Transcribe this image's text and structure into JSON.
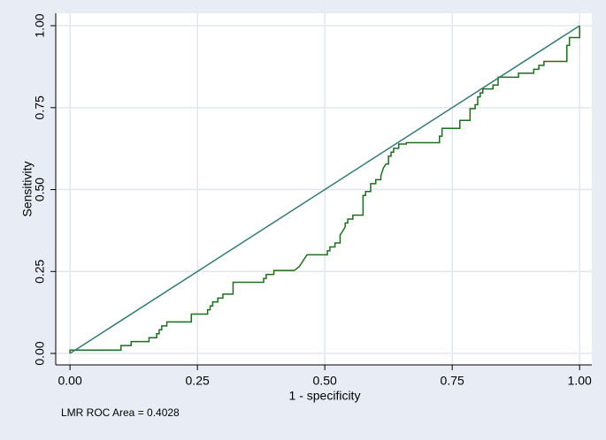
{
  "chart_data": {
    "type": "line",
    "x_label": "1 - specificity",
    "y_label": "Sensitivity",
    "note": "LMR ROC  Area = 0.4028",
    "xlim": [
      -0.028,
      1.024
    ],
    "ylim": [
      -0.035,
      1.038
    ],
    "xticks": [
      {
        "value": 0,
        "label": "0.00"
      },
      {
        "value": 0.25,
        "label": "0.25"
      },
      {
        "value": 0.5,
        "label": "0.50"
      },
      {
        "value": 0.75,
        "label": "0.75"
      },
      {
        "value": 1,
        "label": "1.00"
      }
    ],
    "yticks": [
      {
        "value": 0,
        "label": "0.00"
      },
      {
        "value": 0.25,
        "label": "0.25"
      },
      {
        "value": 0.5,
        "label": "0.50"
      },
      {
        "value": 0.75,
        "label": "0.75"
      },
      {
        "value": 1,
        "label": "1.00"
      }
    ],
    "grid": true,
    "series": [
      {
        "color": "#1f6b1f",
        "x": [
          0,
          0,
          0.1,
          0.1,
          0.12,
          0.12,
          0.155,
          0.155,
          0.17,
          0.17,
          0.175,
          0.175,
          0.18,
          0.18,
          0.19,
          0.19,
          0.238,
          0.238,
          0.27,
          0.27,
          0.275,
          0.275,
          0.28,
          0.28,
          0.29,
          0.29,
          0.3,
          0.3,
          0.32,
          0.32,
          0.38,
          0.38,
          0.385,
          0.385,
          0.4,
          0.4,
          0.44,
          0.45,
          0.455,
          0.465,
          0.505,
          0.505,
          0.51,
          0.51,
          0.52,
          0.52,
          0.53,
          0.53,
          0.535,
          0.54,
          0.54,
          0.545,
          0.545,
          0.555,
          0.555,
          0.575,
          0.575,
          0.58,
          0.58,
          0.59,
          0.59,
          0.6,
          0.6,
          0.61,
          0.61,
          0.615,
          0.62,
          0.625,
          0.625,
          0.63,
          0.63,
          0.635,
          0.635,
          0.645,
          0.645,
          0.66,
          0.66,
          0.725,
          0.725,
          0.73,
          0.73,
          0.765,
          0.765,
          0.785,
          0.785,
          0.795,
          0.795,
          0.8,
          0.8,
          0.805,
          0.805,
          0.81,
          0.81,
          0.83,
          0.83,
          0.84,
          0.84,
          0.88,
          0.88,
          0.91,
          0.91,
          0.92,
          0.92,
          0.93,
          0.93,
          0.975,
          0.975,
          0.98,
          0.98,
          1,
          1
        ],
        "values": [
          0,
          0.01,
          0.01,
          0.024,
          0.024,
          0.036,
          0.036,
          0.048,
          0.048,
          0.06,
          0.06,
          0.072,
          0.072,
          0.084,
          0.084,
          0.096,
          0.096,
          0.12,
          0.12,
          0.133,
          0.133,
          0.145,
          0.145,
          0.157,
          0.157,
          0.169,
          0.169,
          0.181,
          0.181,
          0.217,
          0.217,
          0.229,
          0.229,
          0.241,
          0.241,
          0.253,
          0.253,
          0.265,
          0.277,
          0.301,
          0.301,
          0.313,
          0.313,
          0.325,
          0.325,
          0.337,
          0.337,
          0.361,
          0.373,
          0.386,
          0.398,
          0.398,
          0.41,
          0.41,
          0.422,
          0.422,
          0.482,
          0.482,
          0.494,
          0.494,
          0.518,
          0.518,
          0.53,
          0.53,
          0.542,
          0.566,
          0.578,
          0.578,
          0.602,
          0.602,
          0.614,
          0.614,
          0.626,
          0.626,
          0.639,
          0.639,
          0.643,
          0.643,
          0.663,
          0.663,
          0.687,
          0.687,
          0.711,
          0.711,
          0.747,
          0.747,
          0.759,
          0.759,
          0.783,
          0.783,
          0.795,
          0.795,
          0.807,
          0.807,
          0.819,
          0.819,
          0.843,
          0.843,
          0.855,
          0.855,
          0.867,
          0.867,
          0.879,
          0.879,
          0.891,
          0.891,
          0.94,
          0.94,
          0.964,
          0.964,
          1
        ]
      },
      {
        "color": "#357a72",
        "x": [
          0,
          1
        ],
        "values": [
          0,
          1
        ]
      }
    ]
  }
}
